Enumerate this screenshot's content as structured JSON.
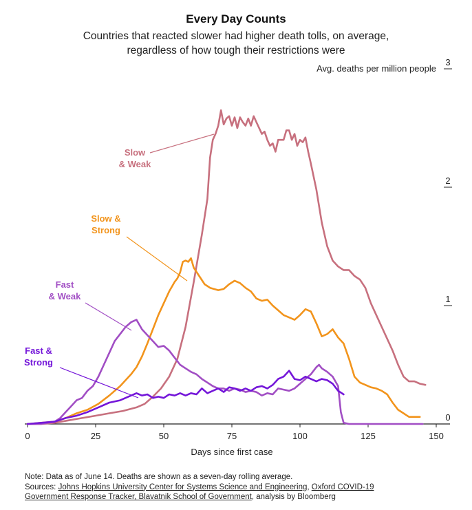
{
  "title": "Every Day Counts",
  "subtitle_line1": "Countries that reacted slower had higher death tolls, on average,",
  "subtitle_line2": "regardless of how tough their restrictions were",
  "footer": {
    "note": "Note: Data as of June 14. Deaths are shown as a seven-day rolling average.",
    "sources_prefix": "Sources: ",
    "source1": "Johns Hopkins University Center for Systems Science and Engineering",
    "sep1": ", ",
    "source2a": "Oxford COVID-19",
    "source2b": "Government Response Tracker, Blavatnik School of Government",
    "suffix": ", analysis by Bloomberg"
  },
  "chart_data": {
    "type": "line",
    "title": "Every Day Counts",
    "xlabel": "Days since first case",
    "ylabel": "Avg. deaths per million people",
    "xlim": [
      0,
      150
    ],
    "ylim": [
      0,
      3
    ],
    "x_ticks": [
      "0",
      "25",
      "50",
      "75",
      "100",
      "125",
      "150"
    ],
    "x_tick_values": [
      0,
      25,
      50,
      75,
      100,
      125,
      150
    ],
    "y_ticks": [
      "0",
      "1",
      "2",
      "3"
    ],
    "y_tick_values": [
      0,
      1,
      2,
      3
    ],
    "series": [
      {
        "name": "Slow & Weak",
        "label_line1": "Slow",
        "label_line2": "& Weak",
        "color": "#c7707e",
        "points": [
          [
            0,
            0.0
          ],
          [
            5,
            0.0
          ],
          [
            10,
            0.01
          ],
          [
            15,
            0.03
          ],
          [
            20,
            0.05
          ],
          [
            25,
            0.07
          ],
          [
            30,
            0.09
          ],
          [
            35,
            0.11
          ],
          [
            40,
            0.14
          ],
          [
            43,
            0.17
          ],
          [
            46,
            0.23
          ],
          [
            49,
            0.3
          ],
          [
            52,
            0.4
          ],
          [
            55,
            0.55
          ],
          [
            58,
            0.82
          ],
          [
            61,
            1.2
          ],
          [
            64,
            1.6
          ],
          [
            66,
            1.9
          ],
          [
            67,
            2.25
          ],
          [
            68,
            2.4
          ],
          [
            69,
            2.45
          ],
          [
            70,
            2.52
          ],
          [
            71,
            2.65
          ],
          [
            72,
            2.53
          ],
          [
            73,
            2.58
          ],
          [
            74,
            2.6
          ],
          [
            75,
            2.52
          ],
          [
            76,
            2.59
          ],
          [
            77,
            2.5
          ],
          [
            78,
            2.59
          ],
          [
            79,
            2.55
          ],
          [
            80,
            2.52
          ],
          [
            81,
            2.58
          ],
          [
            82,
            2.52
          ],
          [
            83,
            2.6
          ],
          [
            84,
            2.55
          ],
          [
            85,
            2.5
          ],
          [
            86,
            2.45
          ],
          [
            87,
            2.47
          ],
          [
            88,
            2.4
          ],
          [
            89,
            2.35
          ],
          [
            90,
            2.37
          ],
          [
            91,
            2.3
          ],
          [
            92,
            2.4
          ],
          [
            94,
            2.4
          ],
          [
            95,
            2.48
          ],
          [
            96,
            2.48
          ],
          [
            97,
            2.4
          ],
          [
            98,
            2.45
          ],
          [
            99,
            2.35
          ],
          [
            100,
            2.4
          ],
          [
            101,
            2.38
          ],
          [
            102,
            2.42
          ],
          [
            103,
            2.3
          ],
          [
            104,
            2.2
          ],
          [
            106,
            1.98
          ],
          [
            108,
            1.7
          ],
          [
            110,
            1.5
          ],
          [
            112,
            1.38
          ],
          [
            114,
            1.33
          ],
          [
            116,
            1.3
          ],
          [
            118,
            1.3
          ],
          [
            120,
            1.25
          ],
          [
            122,
            1.22
          ],
          [
            124,
            1.15
          ],
          [
            126,
            1.02
          ],
          [
            128,
            0.92
          ],
          [
            130,
            0.82
          ],
          [
            132,
            0.72
          ],
          [
            134,
            0.62
          ],
          [
            136,
            0.5
          ],
          [
            138,
            0.4
          ],
          [
            140,
            0.36
          ],
          [
            142,
            0.36
          ],
          [
            144,
            0.34
          ],
          [
            146,
            0.33
          ]
        ]
      },
      {
        "name": "Slow & Strong",
        "label_line1": "Slow &",
        "label_line2": "Strong",
        "color": "#f2941c",
        "points": [
          [
            0,
            0.0
          ],
          [
            5,
            0.01
          ],
          [
            10,
            0.02
          ],
          [
            14,
            0.05
          ],
          [
            18,
            0.09
          ],
          [
            22,
            0.12
          ],
          [
            26,
            0.17
          ],
          [
            30,
            0.24
          ],
          [
            34,
            0.32
          ],
          [
            38,
            0.42
          ],
          [
            40,
            0.48
          ],
          [
            42,
            0.57
          ],
          [
            44,
            0.68
          ],
          [
            46,
            0.8
          ],
          [
            48,
            0.92
          ],
          [
            50,
            1.02
          ],
          [
            52,
            1.12
          ],
          [
            54,
            1.2
          ],
          [
            55,
            1.23
          ],
          [
            56,
            1.28
          ],
          [
            57,
            1.37
          ],
          [
            58,
            1.38
          ],
          [
            59,
            1.37
          ],
          [
            60,
            1.4
          ],
          [
            61,
            1.32
          ],
          [
            63,
            1.25
          ],
          [
            65,
            1.18
          ],
          [
            67,
            1.15
          ],
          [
            70,
            1.13
          ],
          [
            72,
            1.14
          ],
          [
            74,
            1.18
          ],
          [
            76,
            1.21
          ],
          [
            78,
            1.19
          ],
          [
            80,
            1.15
          ],
          [
            82,
            1.12
          ],
          [
            84,
            1.06
          ],
          [
            86,
            1.04
          ],
          [
            88,
            1.05
          ],
          [
            90,
            1.0
          ],
          [
            92,
            0.96
          ],
          [
            94,
            0.92
          ],
          [
            96,
            0.9
          ],
          [
            98,
            0.88
          ],
          [
            100,
            0.92
          ],
          [
            102,
            0.97
          ],
          [
            104,
            0.95
          ],
          [
            106,
            0.85
          ],
          [
            108,
            0.74
          ],
          [
            110,
            0.76
          ],
          [
            112,
            0.8
          ],
          [
            114,
            0.73
          ],
          [
            116,
            0.68
          ],
          [
            118,
            0.55
          ],
          [
            120,
            0.4
          ],
          [
            122,
            0.35
          ],
          [
            124,
            0.33
          ],
          [
            126,
            0.31
          ],
          [
            128,
            0.3
          ],
          [
            130,
            0.28
          ],
          [
            132,
            0.25
          ],
          [
            134,
            0.18
          ],
          [
            136,
            0.12
          ],
          [
            138,
            0.09
          ],
          [
            140,
            0.06
          ],
          [
            142,
            0.06
          ],
          [
            144,
            0.06
          ]
        ]
      },
      {
        "name": "Fast & Weak",
        "label_line1": "Fast",
        "label_line2": "& Weak",
        "color": "#a14ec4",
        "points": [
          [
            0,
            0.0
          ],
          [
            5,
            0.0
          ],
          [
            10,
            0.02
          ],
          [
            12,
            0.05
          ],
          [
            14,
            0.1
          ],
          [
            16,
            0.15
          ],
          [
            18,
            0.2
          ],
          [
            20,
            0.22
          ],
          [
            22,
            0.28
          ],
          [
            24,
            0.32
          ],
          [
            26,
            0.4
          ],
          [
            28,
            0.5
          ],
          [
            30,
            0.6
          ],
          [
            32,
            0.7
          ],
          [
            34,
            0.76
          ],
          [
            36,
            0.82
          ],
          [
            38,
            0.86
          ],
          [
            40,
            0.88
          ],
          [
            42,
            0.8
          ],
          [
            44,
            0.75
          ],
          [
            46,
            0.7
          ],
          [
            48,
            0.65
          ],
          [
            50,
            0.66
          ],
          [
            52,
            0.62
          ],
          [
            54,
            0.56
          ],
          [
            56,
            0.5
          ],
          [
            58,
            0.47
          ],
          [
            60,
            0.44
          ],
          [
            62,
            0.42
          ],
          [
            64,
            0.38
          ],
          [
            66,
            0.35
          ],
          [
            68,
            0.32
          ],
          [
            70,
            0.3
          ],
          [
            72,
            0.3
          ],
          [
            74,
            0.28
          ],
          [
            76,
            0.3
          ],
          [
            78,
            0.29
          ],
          [
            80,
            0.27
          ],
          [
            82,
            0.28
          ],
          [
            84,
            0.27
          ],
          [
            86,
            0.24
          ],
          [
            88,
            0.26
          ],
          [
            90,
            0.25
          ],
          [
            92,
            0.3
          ],
          [
            94,
            0.29
          ],
          [
            96,
            0.28
          ],
          [
            98,
            0.3
          ],
          [
            100,
            0.34
          ],
          [
            102,
            0.38
          ],
          [
            104,
            0.42
          ],
          [
            106,
            0.48
          ],
          [
            107,
            0.5
          ],
          [
            108,
            0.47
          ],
          [
            110,
            0.44
          ],
          [
            112,
            0.4
          ],
          [
            114,
            0.32
          ],
          [
            115,
            0.1
          ],
          [
            116,
            0.01
          ],
          [
            118,
            0.0
          ],
          [
            130,
            0.0
          ],
          [
            145,
            0.0
          ]
        ]
      },
      {
        "name": "Fast & Strong",
        "label_line1": "Fast &",
        "label_line2": "Strong",
        "color": "#7416d9",
        "points": [
          [
            0,
            0.0
          ],
          [
            5,
            0.01
          ],
          [
            10,
            0.02
          ],
          [
            14,
            0.05
          ],
          [
            18,
            0.07
          ],
          [
            22,
            0.1
          ],
          [
            26,
            0.14
          ],
          [
            30,
            0.18
          ],
          [
            34,
            0.2
          ],
          [
            38,
            0.24
          ],
          [
            40,
            0.26
          ],
          [
            42,
            0.24
          ],
          [
            44,
            0.25
          ],
          [
            46,
            0.22
          ],
          [
            48,
            0.23
          ],
          [
            50,
            0.22
          ],
          [
            52,
            0.25
          ],
          [
            54,
            0.24
          ],
          [
            56,
            0.26
          ],
          [
            58,
            0.24
          ],
          [
            60,
            0.26
          ],
          [
            62,
            0.25
          ],
          [
            64,
            0.3
          ],
          [
            66,
            0.26
          ],
          [
            68,
            0.28
          ],
          [
            70,
            0.3
          ],
          [
            72,
            0.27
          ],
          [
            74,
            0.31
          ],
          [
            76,
            0.3
          ],
          [
            78,
            0.28
          ],
          [
            80,
            0.3
          ],
          [
            82,
            0.28
          ],
          [
            84,
            0.31
          ],
          [
            86,
            0.32
          ],
          [
            88,
            0.3
          ],
          [
            90,
            0.33
          ],
          [
            92,
            0.38
          ],
          [
            94,
            0.4
          ],
          [
            96,
            0.45
          ],
          [
            98,
            0.38
          ],
          [
            100,
            0.37
          ],
          [
            102,
            0.4
          ],
          [
            104,
            0.38
          ],
          [
            106,
            0.36
          ],
          [
            108,
            0.38
          ],
          [
            110,
            0.37
          ],
          [
            112,
            0.34
          ],
          [
            114,
            0.28
          ],
          [
            116,
            0.25
          ]
        ]
      }
    ]
  }
}
